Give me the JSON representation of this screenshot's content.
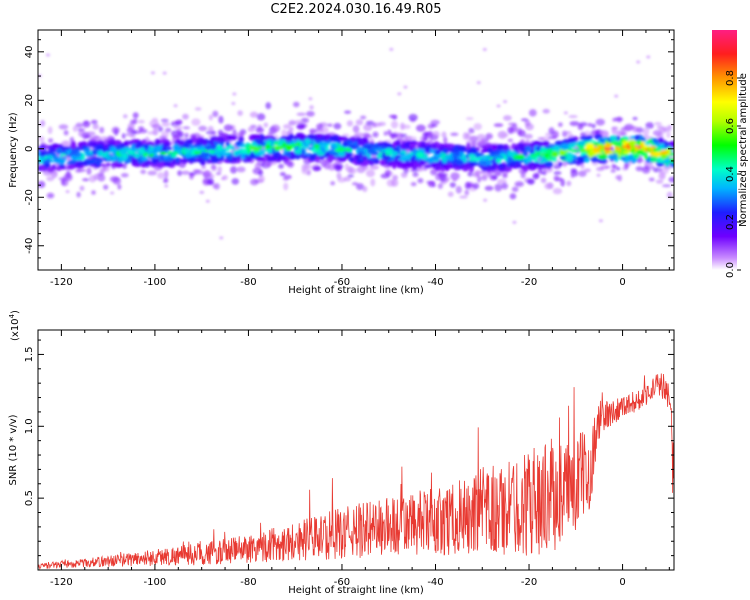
{
  "title": "C2E2.2024.030.16.49.R05",
  "colors": {
    "snr_line": "#e83a32",
    "axis": "#000000"
  },
  "chart_data": [
    {
      "type": "heatmap",
      "xlabel": "Height of straight line (km)",
      "ylabel": "Frequency (Hz)",
      "xlim": [
        -125,
        11
      ],
      "ylim": [
        -50,
        49
      ],
      "xticks": [
        -120,
        -100,
        -80,
        -60,
        -40,
        -20,
        0
      ],
      "yticks": [
        -40,
        -20,
        0,
        20,
        40
      ],
      "colorbar": {
        "label": "Normalized spectral amplitude",
        "range": [
          0,
          1
        ],
        "ticks": [
          "0.0",
          "0.2",
          "0.4",
          "0.6",
          "0.8"
        ],
        "colormap": "rainbow"
      },
      "ridge": {
        "description_points_x": [
          -125,
          -110,
          -100,
          -90,
          -80,
          -70,
          -60,
          -50,
          -40,
          -30,
          -20,
          -10,
          -5,
          0,
          5,
          11
        ],
        "center_freq": [
          -4,
          -2,
          -2,
          -1,
          0,
          1,
          0,
          -2,
          -3,
          -4,
          -3,
          -1,
          0,
          0,
          0,
          -3
        ],
        "peak_amplitude": [
          0.45,
          0.45,
          0.5,
          0.5,
          0.55,
          0.55,
          0.5,
          0.45,
          0.45,
          0.45,
          0.5,
          0.7,
          0.9,
          0.95,
          0.95,
          0.7
        ]
      }
    },
    {
      "type": "line",
      "xlabel": "Height of straight line (km)",
      "ylabel": "SNR (10 * v/v)",
      "yscale_label": "(x10^4)",
      "xlim": [
        -125,
        11
      ],
      "ylim": [
        0.0,
        1.67
      ],
      "xticks": [
        -120,
        -100,
        -80,
        -60,
        -40,
        -20,
        0
      ],
      "yticks": [
        "0.5",
        "1.0",
        "1.5"
      ],
      "ytick_values": [
        0.5,
        1.0,
        1.5
      ],
      "envelope": {
        "x": [
          -125,
          -115,
          -105,
          -95,
          -85,
          -75,
          -65,
          -55,
          -45,
          -35,
          -28,
          -25,
          -20,
          -15,
          -12,
          -10,
          -7,
          -5,
          -3,
          0,
          3,
          5,
          7,
          9,
          10,
          11
        ],
        "base": [
          0.02,
          0.04,
          0.06,
          0.08,
          0.1,
          0.14,
          0.18,
          0.22,
          0.25,
          0.28,
          0.3,
          0.32,
          0.36,
          0.4,
          0.45,
          0.5,
          0.62,
          1.0,
          1.05,
          1.12,
          1.15,
          1.2,
          1.25,
          1.25,
          1.1,
          0.55
        ],
        "amp": [
          0.04,
          0.06,
          0.1,
          0.14,
          0.18,
          0.24,
          0.32,
          0.4,
          0.45,
          0.5,
          0.7,
          0.65,
          0.75,
          0.8,
          0.7,
          0.7,
          0.55,
          0.3,
          0.2,
          0.15,
          0.15,
          0.15,
          0.18,
          0.2,
          0.3,
          0.6
        ]
      }
    }
  ]
}
